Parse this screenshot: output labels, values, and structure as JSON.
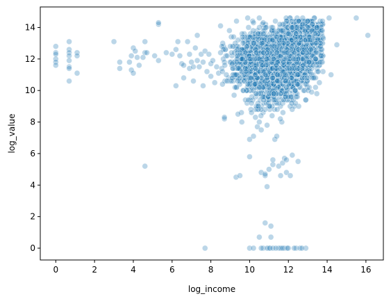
{
  "chart_data": {
    "type": "scatter",
    "title": "",
    "xlabel": "log_income",
    "ylabel": "log_value",
    "xlim": [
      -0.8,
      16.9
    ],
    "ylim": [
      -0.75,
      15.3
    ],
    "xticks": [
      0,
      2,
      4,
      6,
      8,
      10,
      12,
      14,
      16
    ],
    "yticks": [
      0,
      2,
      4,
      6,
      8,
      10,
      12,
      14
    ],
    "grid": false,
    "legend": "none",
    "point_color": "#1f77b4",
    "point_alpha": 0.3,
    "point_edge_color": "#ffffff",
    "series": [
      {
        "points": [
          [
            0.0,
            12.8
          ],
          [
            0.0,
            12.4
          ],
          [
            0.0,
            12.3
          ],
          [
            0.0,
            12.0
          ],
          [
            0.0,
            11.8
          ],
          [
            0.0,
            11.6
          ],
          [
            0.69,
            13.1
          ],
          [
            0.69,
            12.6
          ],
          [
            0.69,
            12.4
          ],
          [
            0.69,
            12.2
          ],
          [
            0.69,
            11.9
          ],
          [
            0.69,
            11.5
          ],
          [
            0.69,
            11.4
          ],
          [
            0.69,
            10.6
          ],
          [
            1.1,
            12.4
          ],
          [
            1.1,
            12.2
          ],
          [
            1.1,
            11.1
          ],
          [
            3.0,
            13.1
          ],
          [
            3.3,
            11.8
          ],
          [
            3.3,
            11.4
          ],
          [
            3.8,
            11.8
          ],
          [
            3.9,
            11.3
          ],
          [
            3.9,
            12.2
          ],
          [
            4.0,
            12.7
          ],
          [
            4.0,
            11.1
          ],
          [
            4.1,
            12.5
          ],
          [
            4.2,
            12.1
          ],
          [
            4.3,
            11.6
          ],
          [
            4.5,
            12.1
          ],
          [
            4.6,
            13.1
          ],
          [
            4.6,
            12.4
          ],
          [
            4.6,
            5.2
          ],
          [
            4.7,
            12.4
          ],
          [
            5.1,
            12.2
          ],
          [
            5.3,
            14.2
          ],
          [
            5.3,
            14.3
          ],
          [
            5.3,
            11.9
          ],
          [
            5.7,
            12.4
          ],
          [
            6.0,
            12.3
          ],
          [
            6.2,
            12.6
          ],
          [
            6.2,
            10.3
          ],
          [
            6.3,
            13.1
          ],
          [
            6.4,
            12.2
          ],
          [
            6.5,
            11.7
          ],
          [
            6.6,
            11.6
          ],
          [
            6.6,
            10.8
          ],
          [
            6.8,
            13.1
          ],
          [
            6.9,
            12.3
          ],
          [
            6.9,
            11.4
          ],
          [
            7.0,
            11.8
          ],
          [
            7.1,
            11.5
          ],
          [
            7.1,
            10.6
          ],
          [
            7.2,
            12.7
          ],
          [
            7.3,
            13.5
          ],
          [
            7.3,
            11.9
          ],
          [
            7.4,
            11.5
          ],
          [
            7.5,
            12.3
          ],
          [
            7.6,
            11.8
          ],
          [
            7.6,
            10.3
          ],
          [
            7.7,
            12.5
          ],
          [
            7.7,
            0.0
          ],
          [
            7.8,
            11.2
          ],
          [
            7.9,
            12.3
          ],
          [
            8.0,
            11.7
          ],
          [
            8.0,
            10.9
          ],
          [
            8.1,
            11.9
          ],
          [
            8.2,
            10.5
          ],
          [
            8.3,
            11.5
          ],
          [
            8.4,
            11.1
          ],
          [
            8.5,
            14.1
          ],
          [
            8.5,
            12.4
          ],
          [
            8.6,
            11.2
          ],
          [
            8.6,
            10.4
          ],
          [
            8.7,
            8.2
          ],
          [
            8.7,
            8.3
          ],
          [
            8.8,
            11.0
          ],
          [
            9.0,
            12.8
          ],
          [
            9.1,
            11.7
          ],
          [
            9.2,
            9.7
          ],
          [
            9.3,
            4.5
          ],
          [
            9.4,
            8.5
          ],
          [
            9.5,
            4.6
          ],
          [
            9.6,
            8.0
          ],
          [
            9.8,
            11.2
          ],
          [
            9.9,
            14.6
          ],
          [
            9.9,
            10.4
          ],
          [
            10.0,
            5.8
          ],
          [
            10.0,
            0.0
          ],
          [
            10.0,
            6.9
          ],
          [
            10.1,
            8.6
          ],
          [
            10.1,
            9.2
          ],
          [
            10.2,
            14.3
          ],
          [
            10.2,
            7.1
          ],
          [
            10.3,
            8.3
          ],
          [
            10.4,
            7.7
          ],
          [
            10.5,
            14.6
          ],
          [
            10.5,
            0.7
          ],
          [
            10.5,
            8.0
          ],
          [
            10.6,
            4.8
          ],
          [
            10.6,
            7.5
          ],
          [
            10.7,
            14.3
          ],
          [
            10.7,
            0.0
          ],
          [
            10.8,
            4.6
          ],
          [
            10.8,
            4.7
          ],
          [
            10.8,
            1.6
          ],
          [
            10.9,
            3.9
          ],
          [
            10.9,
            7.8
          ],
          [
            11.0,
            5.0
          ],
          [
            11.0,
            0.0
          ],
          [
            11.1,
            1.4
          ],
          [
            11.1,
            0.7
          ],
          [
            11.2,
            5.3
          ],
          [
            11.2,
            5.6
          ],
          [
            11.3,
            6.9
          ],
          [
            11.4,
            7.1
          ],
          [
            11.5,
            5.2
          ],
          [
            11.5,
            0.0
          ],
          [
            11.6,
            4.6
          ],
          [
            11.7,
            5.4
          ],
          [
            11.8,
            5.7
          ],
          [
            11.8,
            0.0
          ],
          [
            11.9,
            5.6
          ],
          [
            11.9,
            4.8
          ],
          [
            12.0,
            0.0
          ],
          [
            12.1,
            4.6
          ],
          [
            12.2,
            5.9
          ],
          [
            12.4,
            0.0
          ],
          [
            12.5,
            5.5
          ],
          [
            12.6,
            0.0
          ],
          [
            12.9,
            9.4
          ],
          [
            12.9,
            0.0
          ],
          [
            13.0,
            14.4
          ],
          [
            13.2,
            9.9
          ],
          [
            13.4,
            10.2
          ],
          [
            13.6,
            10.5
          ],
          [
            13.8,
            13.3
          ],
          [
            14.1,
            14.6
          ],
          [
            14.2,
            11.0
          ],
          [
            14.5,
            12.9
          ],
          [
            15.5,
            14.6
          ],
          [
            16.1,
            13.5
          ],
          [
            10.2,
            0.0
          ],
          [
            10.6,
            0.0
          ],
          [
            10.9,
            0.0
          ],
          [
            11.05,
            0.0
          ],
          [
            11.2,
            0.0
          ],
          [
            11.35,
            0.0
          ],
          [
            11.6,
            0.0
          ],
          [
            11.7,
            0.0
          ],
          [
            11.95,
            0.0
          ],
          [
            12.3,
            0.0
          ],
          [
            12.7,
            0.0
          ]
        ]
      }
    ],
    "dense_cluster": {
      "count": 3200,
      "regions": [
        {
          "cx": 10.7,
          "cy": 12.0,
          "sx": 0.85,
          "sy": 0.8,
          "w": 0.35
        },
        {
          "cx": 12.2,
          "cy": 12.4,
          "sx": 0.75,
          "sy": 0.85,
          "w": 0.3
        },
        {
          "cx": 11.3,
          "cy": 10.7,
          "sx": 0.7,
          "sy": 0.9,
          "w": 0.2
        },
        {
          "cx": 12.8,
          "cy": 13.5,
          "sx": 0.5,
          "sy": 0.5,
          "w": 0.15
        }
      ],
      "x_range": [
        8.5,
        13.8
      ],
      "y_range": [
        8.0,
        14.6
      ]
    }
  }
}
